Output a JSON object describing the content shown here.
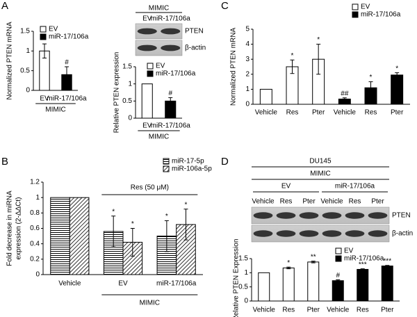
{
  "chart_data": [
    {
      "type": "bar",
      "panel": "A",
      "ylabel": [
        "Normalized PTEN mRNA"
      ],
      "categories": [
        "EV",
        "miR-17/106a"
      ],
      "group_label": "MIMIC",
      "series": [
        {
          "name": "EV",
          "color": "#ffffff",
          "values": [
            1,
            null
          ],
          "errors": [
            0.18,
            null
          ],
          "annotations": [
            null,
            null
          ]
        },
        {
          "name": "miR-17/106a",
          "color": "#000000",
          "values": [
            null,
            0.4
          ],
          "errors": [
            null,
            0.2
          ],
          "annotations": [
            null,
            "#"
          ]
        }
      ],
      "ylim": [
        0,
        1.5
      ],
      "yticks": [
        0,
        0.5,
        1,
        1.5
      ]
    },
    {
      "type": "bar",
      "ylabel": [
        "Relative PTEN expression"
      ],
      "categories": [
        "EV",
        "miR-17/106a"
      ],
      "group_label": "MIMIC",
      "blot": {
        "header": [
          "MIMIC"
        ],
        "groups": [],
        "lanes": [
          "EV",
          "miR-17/106a"
        ],
        "rows": [
          "PTEN",
          "β-actin"
        ]
      },
      "series": [
        {
          "name": "EV",
          "color": "#ffffff",
          "values": [
            1,
            null
          ],
          "errors": [
            null,
            null
          ],
          "annotations": [
            null,
            null
          ]
        },
        {
          "name": "miR-17/106a",
          "color": "#000000",
          "values": [
            null,
            0.5
          ],
          "errors": [
            null,
            0.1
          ],
          "annotations": [
            null,
            "#"
          ]
        }
      ],
      "ylim": [
        0,
        1.5
      ],
      "yticks": [
        0,
        0.5,
        1,
        1.5
      ]
    },
    {
      "type": "bar",
      "panel": "B",
      "ylabel": [
        "Fold decrease in miRNA",
        "expression (2-ΔΔCt)"
      ],
      "categories": [
        "Vehicle",
        "EV",
        "miR-17/106a"
      ],
      "bracket_label": "Res (50 μM)",
      "group_label": "MIMIC",
      "series": [
        {
          "name": "miR-17-5p",
          "pattern": "horizontal",
          "values": [
            1,
            0.56,
            0.5
          ],
          "errors": [
            null,
            0.2,
            0.2
          ],
          "annotations": [
            null,
            "*",
            "*"
          ]
        },
        {
          "name": "miR-106a-5p",
          "pattern": "diagonal",
          "values": [
            1,
            0.42,
            0.65
          ],
          "errors": [
            null,
            0.18,
            0.2
          ],
          "annotations": [
            null,
            "*",
            "*"
          ]
        }
      ],
      "ylim": [
        0,
        1.2
      ],
      "yticks": [
        0,
        0.2,
        0.4,
        0.6,
        0.8,
        1,
        1.2
      ]
    },
    {
      "type": "bar",
      "panel": "C",
      "ylabel": [
        "Normalized PTEN mRNA"
      ],
      "categories": [
        "Vehicle",
        "Res",
        "Pter",
        "Vehicle",
        "Res",
        "Pter"
      ],
      "series": [
        {
          "name": "EV",
          "color": "#ffffff",
          "values": [
            1,
            2.5,
            3,
            null,
            null,
            null
          ],
          "errors": [
            null,
            0.45,
            1.0,
            null,
            null,
            null
          ],
          "annotations": [
            null,
            "*",
            "*",
            null,
            null,
            null
          ]
        },
        {
          "name": "miR-17/106a",
          "color": "#000000",
          "values": [
            null,
            null,
            null,
            0.35,
            1.1,
            1.95
          ],
          "errors": [
            null,
            null,
            null,
            0.08,
            0.4,
            0.15
          ],
          "annotations": [
            null,
            null,
            null,
            "##",
            "*",
            "*"
          ]
        }
      ],
      "ylim": [
        0,
        5
      ],
      "yticks": [
        0,
        1,
        2,
        3,
        4,
        5
      ]
    },
    {
      "type": "bar",
      "panel": "D",
      "ylabel": [
        "Relative PTEN Expression"
      ],
      "categories": [
        "Vehicle",
        "Res",
        "Pter",
        "Vehicle",
        "Res",
        "Pter"
      ],
      "blot": {
        "header": [
          "DU145",
          "MIMIC"
        ],
        "groups": [
          "EV",
          "miR-17/106a"
        ],
        "lanes": [
          "Vehicle",
          "Res",
          "Pter",
          "Vehicle",
          "Res",
          "Pter"
        ],
        "rows": [
          "PTEN",
          "β-actin"
        ]
      },
      "series": [
        {
          "name": "EV",
          "color": "#ffffff",
          "values": [
            1,
            1.17,
            1.38,
            null,
            null,
            null
          ],
          "errors": [
            null,
            0.03,
            0.03,
            null,
            null,
            null
          ],
          "annotations": [
            null,
            "*",
            "**",
            null,
            null,
            null
          ]
        },
        {
          "name": "miR-17/106a",
          "color": "#000000",
          "values": [
            null,
            null,
            null,
            0.72,
            1.12,
            1.24
          ],
          "errors": [
            null,
            null,
            null,
            0.03,
            0.02,
            0.02
          ],
          "annotations": [
            null,
            null,
            null,
            "#",
            "***",
            "***"
          ]
        }
      ],
      "ylim": [
        0,
        1.5
      ],
      "yticks": [
        0,
        0.5,
        1,
        1.5
      ]
    }
  ]
}
